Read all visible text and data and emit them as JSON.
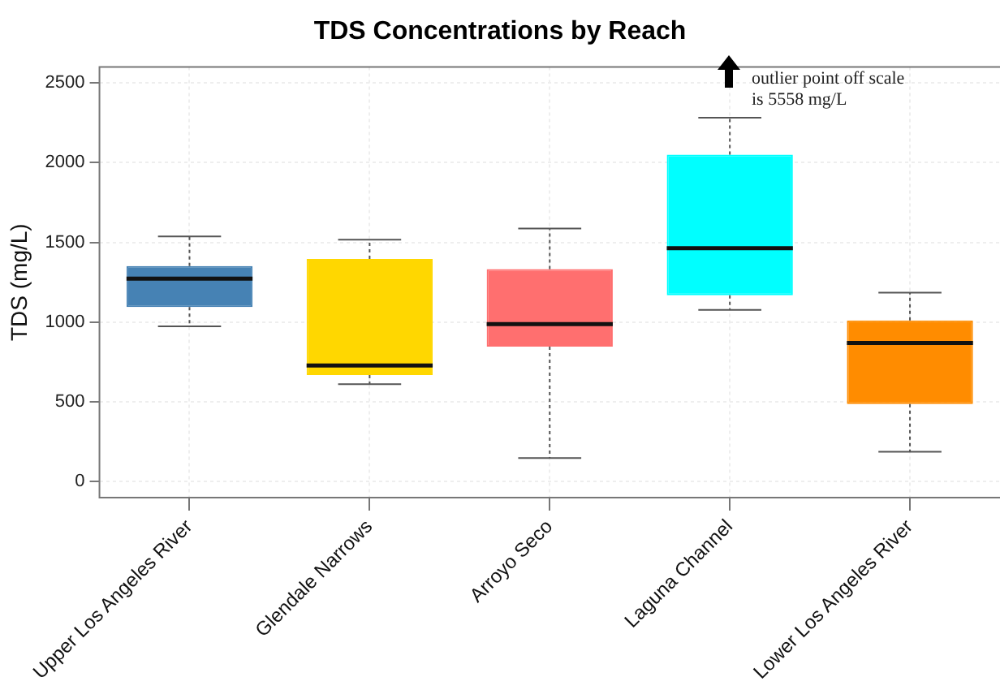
{
  "chart_data": {
    "type": "box",
    "title": "TDS Concentrations by Reach",
    "ylabel": "TDS (mg/L)",
    "categories": [
      "Upper Los Angeles River",
      "Glendale Narrows",
      "Arroyo Seco",
      "Laguna Channel",
      "Lower Los Angeles River"
    ],
    "boxes": [
      {
        "low": 973,
        "q1": 1094,
        "median": 1272,
        "q3": 1352,
        "high": 1537
      },
      {
        "low": 611,
        "q1": 668,
        "median": 728,
        "q3": 1396,
        "high": 1517
      },
      {
        "low": 148,
        "q1": 846,
        "median": 987,
        "q3": 1332,
        "high": 1587
      },
      {
        "low": 1077,
        "q1": 1168,
        "median": 1463,
        "q3": 2050,
        "high": 2282
      },
      {
        "low": 188,
        "q1": 487,
        "median": 869,
        "q3": 1010,
        "high": 1185
      }
    ],
    "colors": [
      "#4682b4",
      "#ffd700",
      "#ff6f6f",
      "#00ffff",
      "#ff8c00"
    ],
    "ylim": [
      -100,
      2600
    ],
    "yticks": [
      0,
      500,
      1000,
      1500,
      2000,
      2500
    ],
    "grid": true,
    "annotations": [
      "outlier point off scale\nis 5558 mg/L"
    ]
  }
}
